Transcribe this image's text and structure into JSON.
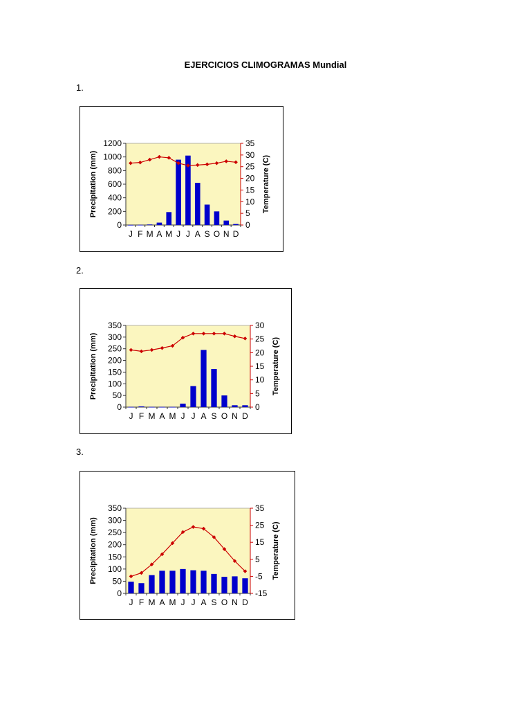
{
  "document": {
    "title": "EJERCICIOS CLIMOGRAMAS Mundial"
  },
  "colors": {
    "plot_background": "#fbf6bf",
    "bar": "#0000cc",
    "temperature_line": "#cc0000"
  },
  "chart_data": [
    {
      "number": "1.",
      "type": "bar+line",
      "title": "",
      "categories": [
        "J",
        "F",
        "M",
        "A",
        "M",
        "J",
        "J",
        "A",
        "S",
        "O",
        "N",
        "D"
      ],
      "ylabel": "Precipitation (mm)",
      "y2label": "Temperature (C)",
      "ylim": [
        0,
        1200
      ],
      "yticks": [
        0,
        200,
        400,
        600,
        800,
        1000,
        1200
      ],
      "y2lim": [
        0,
        35
      ],
      "y2ticks": [
        0,
        5,
        10,
        15,
        20,
        25,
        30,
        35
      ],
      "series": [
        {
          "name": "",
          "kind": "bar",
          "axis": "left",
          "values": [
            2,
            3,
            8,
            35,
            190,
            960,
            1020,
            620,
            300,
            200,
            65,
            15
          ]
        },
        {
          "name": "",
          "kind": "line",
          "axis": "right",
          "values": [
            26.5,
            26.8,
            28,
            29.2,
            28.8,
            26.5,
            25.5,
            25.7,
            26,
            26.5,
            27.3,
            26.9
          ]
        }
      ],
      "grid": false
    },
    {
      "number": "2.",
      "type": "bar+line",
      "title": "",
      "categories": [
        "J",
        "F",
        "M",
        "A",
        "M",
        "J",
        "J",
        "A",
        "S",
        "O",
        "N",
        "D"
      ],
      "ylabel": "Precipitation (mm)",
      "y2label": "Temperature (C)",
      "ylim": [
        0,
        350
      ],
      "yticks": [
        0,
        50,
        100,
        150,
        200,
        250,
        300,
        350
      ],
      "y2lim": [
        0,
        30
      ],
      "y2ticks": [
        0,
        5,
        10,
        15,
        20,
        25,
        30
      ],
      "series": [
        {
          "name": "",
          "kind": "bar",
          "axis": "left",
          "values": [
            1,
            3,
            1,
            1,
            1,
            15,
            90,
            245,
            163,
            50,
            8,
            8
          ]
        },
        {
          "name": "",
          "kind": "line",
          "axis": "right",
          "values": [
            21,
            20.5,
            21,
            21.7,
            22.5,
            25.5,
            27,
            27,
            27,
            27,
            26,
            25.2
          ]
        }
      ],
      "grid": false
    },
    {
      "number": "3.",
      "type": "bar+line",
      "title": "",
      "categories": [
        "J",
        "F",
        "M",
        "A",
        "M",
        "J",
        "J",
        "A",
        "S",
        "O",
        "N",
        "D"
      ],
      "ylabel": "Precipitation (mm)",
      "y2label": "Temperature (C)",
      "ylim": [
        0,
        350
      ],
      "yticks": [
        0,
        50,
        100,
        150,
        200,
        250,
        300,
        350
      ],
      "y2lim": [
        -15,
        35
      ],
      "y2ticks": [
        -15,
        -5,
        5,
        15,
        25,
        35
      ],
      "series": [
        {
          "name": "",
          "kind": "bar",
          "axis": "left",
          "values": [
            48,
            42,
            75,
            93,
            93,
            100,
            95,
            93,
            80,
            68,
            70,
            62
          ]
        },
        {
          "name": "",
          "kind": "line",
          "axis": "right",
          "values": [
            -5,
            -3,
            2,
            8,
            14.5,
            21,
            24,
            23,
            18,
            11,
            4,
            -2
          ]
        }
      ],
      "grid": false
    }
  ]
}
